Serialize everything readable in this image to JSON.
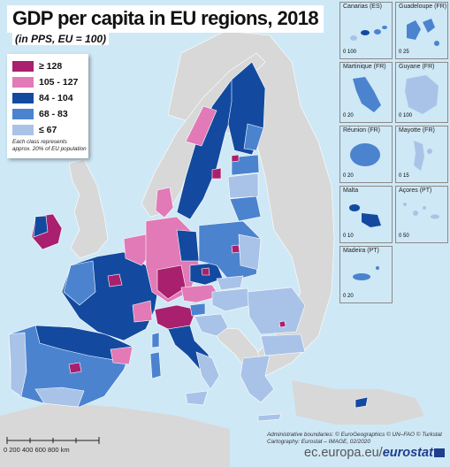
{
  "title": "GDP per capita in EU regions, 2018",
  "subtitle": "(in PPS, EU = 100)",
  "legend": {
    "classes": [
      {
        "label": "≥ 128",
        "color": "#a8206e"
      },
      {
        "label": "105 - 127",
        "color": "#e17ab7"
      },
      {
        "label": "84 - 104",
        "color": "#134aa0"
      },
      {
        "label": "68 - 83",
        "color": "#4b83cf"
      },
      {
        "label": "≤ 67",
        "color": "#a9c3e8"
      }
    ],
    "note": "Each class represents approx. 20% of EU population"
  },
  "insets": [
    {
      "label": "Canarias (ES)",
      "scale": "0   100"
    },
    {
      "label": "Guadeloupe (FR)",
      "scale": "0   25"
    },
    {
      "label": "Martinique (FR)",
      "scale": "0   20"
    },
    {
      "label": "Guyane (FR)",
      "scale": "0   100"
    },
    {
      "label": "Réunion (FR)",
      "scale": "0   20"
    },
    {
      "label": "Mayotte (FR)",
      "scale": "0   15"
    },
    {
      "label": "Malta",
      "scale": "0   10"
    },
    {
      "label": "Açores (PT)",
      "scale": "0   50"
    },
    {
      "label": "Madeira (PT)",
      "scale": "0   20"
    }
  ],
  "scale_bar": {
    "labels": "0      200     400     600     800 km"
  },
  "credits": {
    "line1": "Administrative boundaries: © EuroGeographics © UN–FAO © Turkstat",
    "line2": "Cartography: Eurostat – IMAGE, 02/2020"
  },
  "footer": {
    "site": "ec.europa.eu/",
    "brand": "eurostat"
  }
}
